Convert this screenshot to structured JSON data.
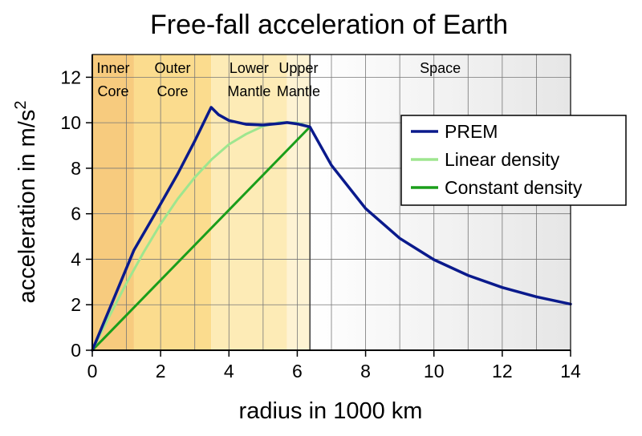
{
  "chart_data": {
    "type": "line",
    "title": "Free-fall acceleration of Earth",
    "xlabel": "radius in 1000 km",
    "ylabel": "acceleration in m/s",
    "ylabel_superscript": "2",
    "xlim": [
      0,
      14
    ],
    "ylim": [
      0,
      13
    ],
    "x_ticks": [
      0,
      2,
      4,
      6,
      8,
      10,
      12,
      14
    ],
    "y_ticks": [
      0,
      2,
      4,
      6,
      8,
      10,
      12
    ],
    "grid": true,
    "legend_position": "top-right",
    "regions": [
      {
        "line1": "Inner",
        "line2": "Core",
        "from": 0,
        "to": 1.22,
        "color": "#f7cb7e"
      },
      {
        "line1": "Outer",
        "line2": "Core",
        "from": 1.22,
        "to": 3.48,
        "color": "#fbdc8e"
      },
      {
        "line1": "Lower",
        "line2": "Mantle",
        "from": 3.48,
        "to": 5.7,
        "color": "#fdebb6"
      },
      {
        "line1": "Upper",
        "line2": "Mantle",
        "from": 5.7,
        "to": 6.371,
        "color": "#fef3d3"
      },
      {
        "line1": "Space",
        "line2": "",
        "from": 6.371,
        "to": 14,
        "color": "#f2f2f2"
      }
    ],
    "series": [
      {
        "name": "PREM",
        "color": "#0a1a8c",
        "points": [
          [
            0,
            0
          ],
          [
            0.5,
            1.8
          ],
          [
            1.22,
            4.4
          ],
          [
            1.8,
            5.9
          ],
          [
            2.5,
            7.75
          ],
          [
            3.0,
            9.2
          ],
          [
            3.48,
            10.68
          ],
          [
            3.7,
            10.35
          ],
          [
            4.0,
            10.1
          ],
          [
            4.5,
            9.93
          ],
          [
            5.0,
            9.9
          ],
          [
            5.5,
            9.97
          ],
          [
            5.7,
            10.01
          ],
          [
            6.0,
            9.95
          ],
          [
            6.371,
            9.82
          ],
          [
            7,
            8.13
          ],
          [
            8,
            6.23
          ],
          [
            9,
            4.92
          ],
          [
            10,
            3.98
          ],
          [
            11,
            3.29
          ],
          [
            12,
            2.76
          ],
          [
            13,
            2.35
          ],
          [
            14,
            2.03
          ]
        ]
      },
      {
        "name": "Linear density",
        "color": "#9ee68f",
        "points": [
          [
            0,
            0
          ],
          [
            0.5,
            1.5
          ],
          [
            1.0,
            2.95
          ],
          [
            1.5,
            4.3
          ],
          [
            2.0,
            5.55
          ],
          [
            2.5,
            6.65
          ],
          [
            3.0,
            7.6
          ],
          [
            3.5,
            8.4
          ],
          [
            4.0,
            9.05
          ],
          [
            4.5,
            9.5
          ],
          [
            5.0,
            9.85
          ],
          [
            5.5,
            10.02
          ],
          [
            6.0,
            10.0
          ],
          [
            6.371,
            9.82
          ]
        ]
      },
      {
        "name": "Constant density",
        "color": "#1a9e1a",
        "points": [
          [
            0,
            0
          ],
          [
            6.371,
            9.82
          ]
        ]
      }
    ]
  }
}
